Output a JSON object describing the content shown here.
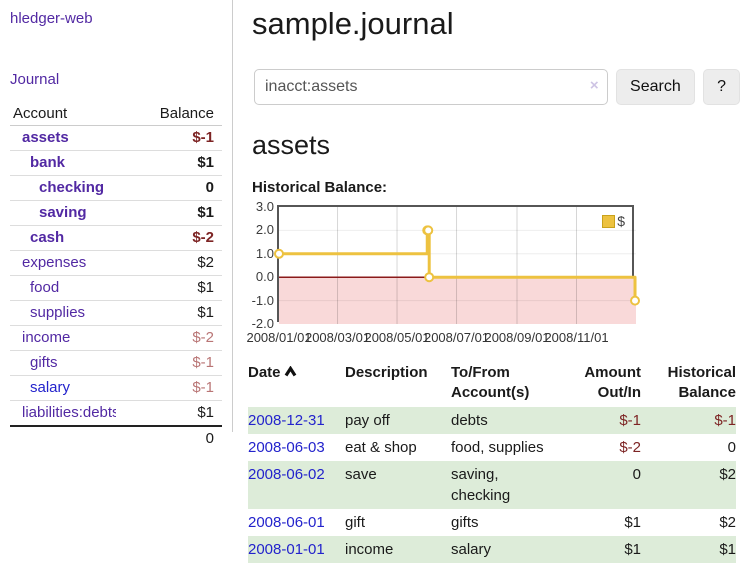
{
  "app": {
    "brand": "hledger-web"
  },
  "sidebar": {
    "journal_link": "Journal",
    "table": {
      "headers": {
        "account": "Account",
        "balance": "Balance"
      },
      "rows": [
        {
          "account": "assets",
          "balance": "$-1"
        },
        {
          "account": "bank",
          "balance": "$1"
        },
        {
          "account": "checking",
          "balance": "0"
        },
        {
          "account": "saving",
          "balance": "$1"
        },
        {
          "account": "cash",
          "balance": "$-2"
        },
        {
          "account": "expenses",
          "balance": "$2"
        },
        {
          "account": "food",
          "balance": "$1"
        },
        {
          "account": "supplies",
          "balance": "$1"
        },
        {
          "account": "income",
          "balance": "$-2"
        },
        {
          "account": "gifts",
          "balance": "$-1"
        },
        {
          "account": "salary",
          "balance": "$-1"
        },
        {
          "account": "liabilities:debts",
          "balance": "$1"
        }
      ],
      "total": "0"
    }
  },
  "header": {
    "title": "sample.journal"
  },
  "search": {
    "value": "inacct:assets",
    "clear_icon": "×",
    "button": "Search",
    "help_button": "?"
  },
  "content": {
    "account_title": "assets",
    "chart_label": "Historical Balance:"
  },
  "chart_data": {
    "type": "line",
    "step": true,
    "title": "Historical Balance",
    "series": [
      {
        "name": "$",
        "color": "#EDC240",
        "points": [
          [
            "2008-01-01",
            1
          ],
          [
            "2008-06-01",
            2
          ],
          [
            "2008-06-02",
            2
          ],
          [
            "2008-06-03",
            0
          ],
          [
            "2008-12-31",
            -1
          ]
        ]
      }
    ],
    "xrange": [
      "2008-01-01",
      "2009-01-01"
    ],
    "ylim": [
      -2,
      3
    ],
    "yticks": [
      3.0,
      2.0,
      1.0,
      0.0,
      -1.0,
      -2.0
    ],
    "xticks": [
      "2008/01/01",
      "2008/03/01",
      "2008/05/01",
      "2008/07/01",
      "2008/09/01",
      "2008/11/01"
    ],
    "legend_position": "top-right",
    "grid": true,
    "zero_line_color": "#8b1a1a",
    "negative_fill": "#f9d9d9"
  },
  "register": {
    "headers": {
      "date": "Date",
      "description": "Description",
      "account": "To/From Account(s)",
      "amount": "Amount Out/In",
      "balance": "Historical Balance"
    },
    "rows": [
      {
        "date": "2008-12-31",
        "description": "pay off",
        "accounts": "debts",
        "amount": "$-1",
        "balance": "$-1"
      },
      {
        "date": "2008-06-03",
        "description": "eat & shop",
        "accounts": "food, supplies",
        "amount": "$-2",
        "balance": "0"
      },
      {
        "date": "2008-06-02",
        "description": "save",
        "accounts": "saving, checking",
        "amount": "0",
        "balance": "$2"
      },
      {
        "date": "2008-06-01",
        "description": "gift",
        "accounts": "gifts",
        "amount": "$1",
        "balance": "$2"
      },
      {
        "date": "2008-01-01",
        "description": "income",
        "accounts": "salary",
        "amount": "$1",
        "balance": "$1"
      }
    ]
  },
  "colors": {
    "link_purple": "#5229a3",
    "link_blue": "#2323cc",
    "negative_strong": "#7d2424",
    "negative_soft": "#b97575",
    "row_stripe_green": "#ddecd9",
    "series_gold": "#EDC240",
    "zero_line_red": "#8b1a1a",
    "chart_negative_pink": "#f9d9d9"
  }
}
